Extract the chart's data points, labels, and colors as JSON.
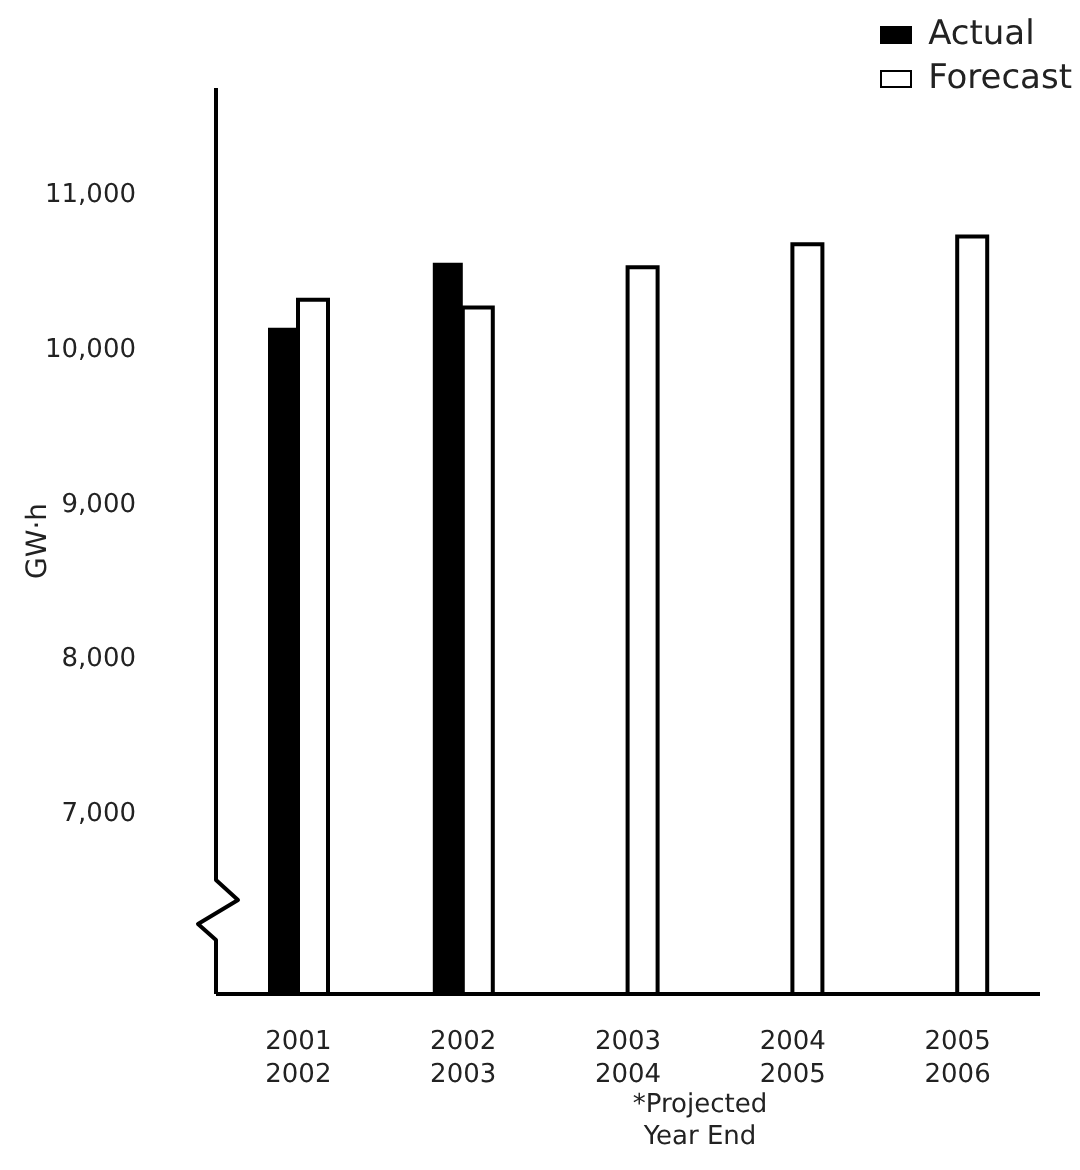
{
  "chart_data": {
    "type": "bar",
    "ylabel": "GW·h",
    "categories": [
      "2001\n2002",
      "2002\n2003",
      "2003\n2004",
      "2004\n2005",
      "2005\n2006"
    ],
    "series": [
      {
        "name": "Actual",
        "color": "#000000",
        "values": [
          10130,
          10550,
          null,
          null,
          null
        ]
      },
      {
        "name": "Forecast",
        "color": "#ffffff",
        "values": [
          10310,
          10260,
          10520,
          10670,
          10720
        ]
      }
    ],
    "ylim": [
      5820,
      11680
    ],
    "yticks": [
      {
        "value": 7000,
        "label": "7,000"
      },
      {
        "value": 8000,
        "label": "8,000"
      },
      {
        "value": 9000,
        "label": "9,000"
      },
      {
        "value": 10000,
        "label": "10,000"
      },
      {
        "value": 11000,
        "label": "11,000"
      }
    ],
    "annotations": [
      "*Projected\nYear End"
    ],
    "legend": "top right",
    "grid": false
  }
}
